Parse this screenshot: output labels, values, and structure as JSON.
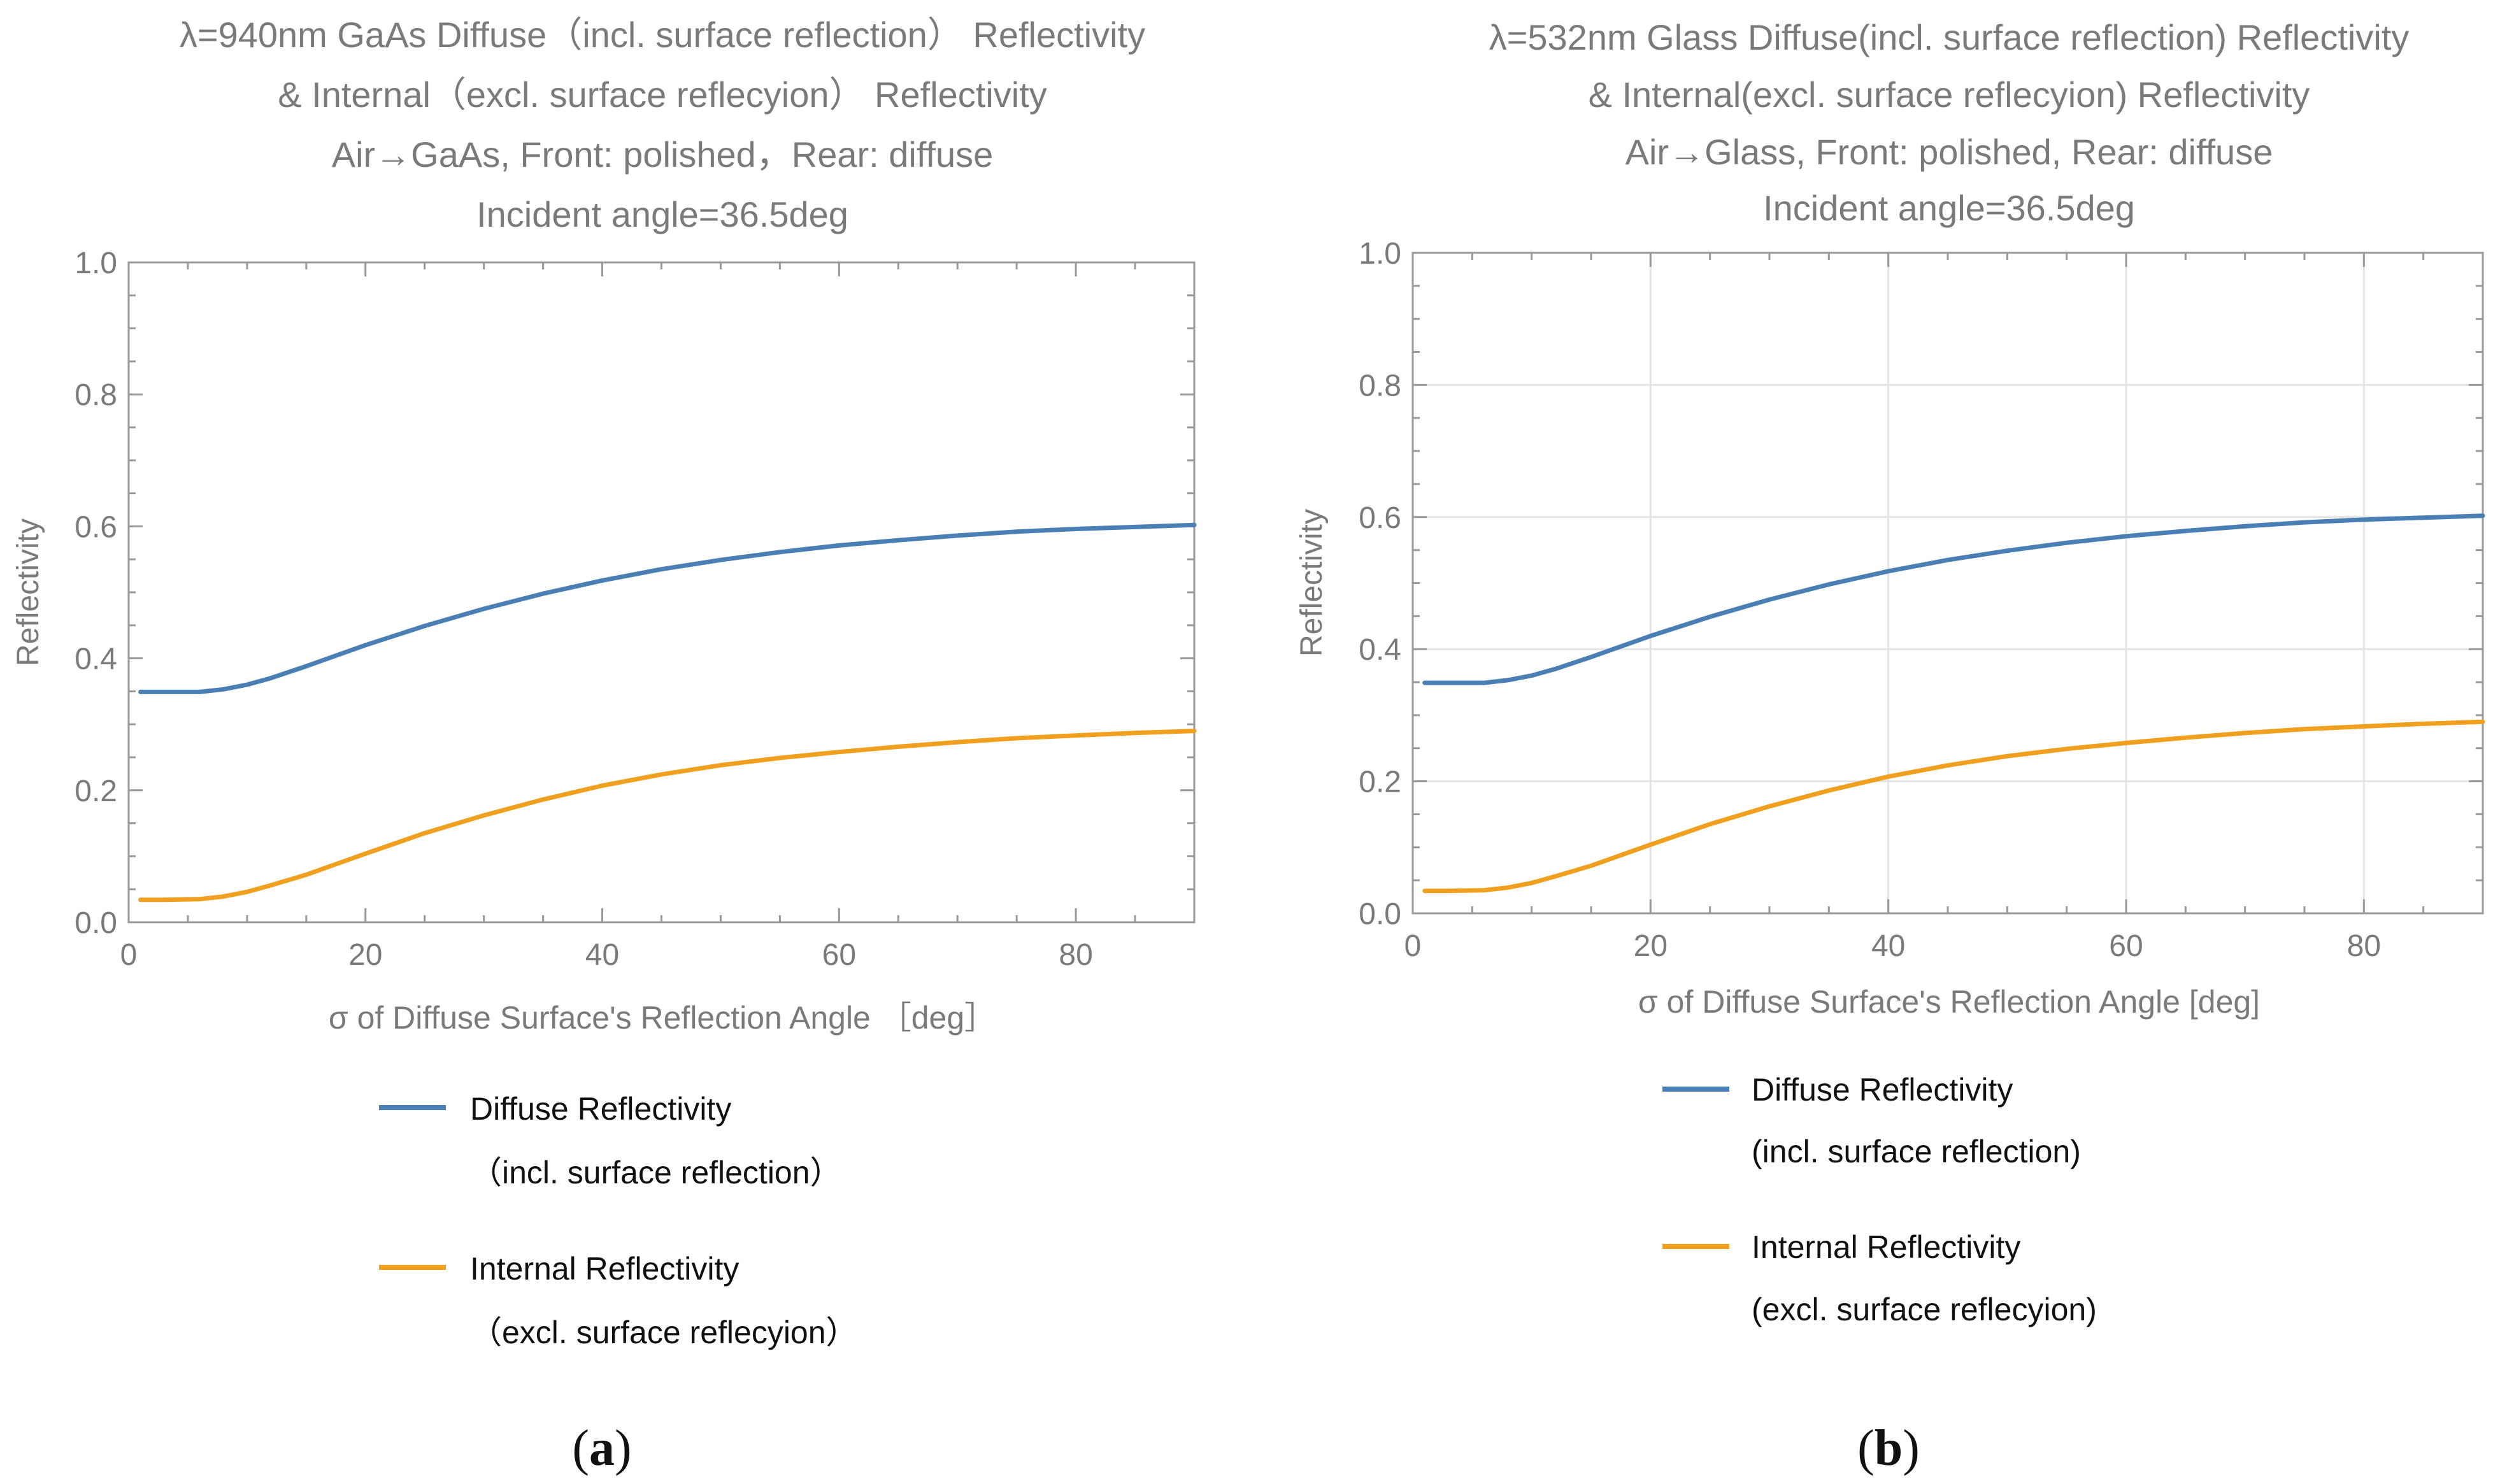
{
  "colors": {
    "diffuse": "#4a7fb5",
    "internal": "#f0a01e",
    "text_gray": "#7a7a7a",
    "text_dark": "#111111",
    "frame": "#999999",
    "grid": "#e4e4e4"
  },
  "panel_labels": {
    "a": {
      "open": "(",
      "letter": "a",
      "close": ")"
    },
    "b": {
      "open": "(",
      "letter": "b",
      "close": ")"
    }
  },
  "chart_data": [
    {
      "type": "line",
      "title": [
        "λ=940nm GaAs Diffuse（incl. surface reflection） Reflectivity",
        "& Internal（excl. surface reflecyion） Reflectivity",
        "Air→GaAs, Front: polished，Rear: diffuse",
        "Incident angle=36.5deg"
      ],
      "xlabel": "σ of Diffuse Surface's Reflection Angle ［deg］",
      "ylabel": "Reflectivity",
      "xlim": [
        0,
        90
      ],
      "ylim": [
        0,
        1
      ],
      "xticks": [
        "0",
        "20",
        "40",
        "60",
        "80"
      ],
      "yticks": [
        "0.0",
        "0.2",
        "0.4",
        "0.6",
        "0.8",
        "1.0"
      ],
      "grid": false,
      "legend_position": "bottom",
      "series": [
        {
          "name": "Diffuse Reflectivity",
          "sub": "（incl. surface reflection）",
          "x": [
            1,
            3,
            6,
            8,
            10,
            12,
            15,
            20,
            25,
            30,
            35,
            40,
            45,
            50,
            55,
            60,
            65,
            70,
            75,
            80,
            85,
            90
          ],
          "values": [
            0.349,
            0.349,
            0.349,
            0.353,
            0.36,
            0.37,
            0.388,
            0.42,
            0.449,
            0.475,
            0.498,
            0.518,
            0.535,
            0.549,
            0.561,
            0.571,
            0.579,
            0.586,
            0.592,
            0.596,
            0.599,
            0.602
          ]
        },
        {
          "name": "Internal  Reflectivity",
          "sub": "（excl. surface reflecyion）",
          "x": [
            1,
            3,
            6,
            8,
            10,
            12,
            15,
            20,
            25,
            30,
            35,
            40,
            45,
            50,
            55,
            60,
            65,
            70,
            75,
            80,
            85,
            90
          ],
          "values": [
            0.034,
            0.034,
            0.035,
            0.039,
            0.046,
            0.056,
            0.072,
            0.104,
            0.135,
            0.162,
            0.186,
            0.207,
            0.224,
            0.238,
            0.249,
            0.258,
            0.266,
            0.273,
            0.279,
            0.283,
            0.287,
            0.29
          ]
        }
      ]
    },
    {
      "type": "line",
      "title": [
        "λ=532nm Glass Diffuse(incl. surface reflection) Reflectivity",
        "& Internal(excl. surface reflecyion) Reflectivity",
        "Air→Glass, Front: polished, Rear: diffuse",
        "Incident angle=36.5deg"
      ],
      "xlabel": "σ of Diffuse Surface's Reflection Angle [deg]",
      "ylabel": "Reflectivity",
      "xlim": [
        0,
        90
      ],
      "ylim": [
        0,
        1
      ],
      "xticks": [
        "0",
        "20",
        "40",
        "60",
        "80"
      ],
      "yticks": [
        "0.0",
        "0.2",
        "0.4",
        "0.6",
        "0.8",
        "1.0"
      ],
      "grid": true,
      "legend_position": "bottom",
      "series": [
        {
          "name": "Diffuse Reflectivity",
          "sub": "(incl. surface reflection)",
          "x": [
            1,
            3,
            6,
            8,
            10,
            12,
            15,
            20,
            25,
            30,
            35,
            40,
            45,
            50,
            55,
            60,
            65,
            70,
            75,
            80,
            85,
            90
          ],
          "values": [
            0.349,
            0.349,
            0.349,
            0.353,
            0.36,
            0.37,
            0.388,
            0.42,
            0.449,
            0.475,
            0.498,
            0.518,
            0.535,
            0.549,
            0.561,
            0.571,
            0.579,
            0.586,
            0.592,
            0.596,
            0.599,
            0.602
          ]
        },
        {
          "name": "Internal  Reflectivity",
          "sub": "(excl. surface reflecyion)",
          "x": [
            1,
            3,
            6,
            8,
            10,
            12,
            15,
            20,
            25,
            30,
            35,
            40,
            45,
            50,
            55,
            60,
            65,
            70,
            75,
            80,
            85,
            90
          ],
          "values": [
            0.034,
            0.034,
            0.035,
            0.039,
            0.046,
            0.056,
            0.072,
            0.104,
            0.135,
            0.162,
            0.186,
            0.207,
            0.224,
            0.238,
            0.249,
            0.258,
            0.266,
            0.273,
            0.279,
            0.283,
            0.287,
            0.29
          ]
        }
      ]
    }
  ]
}
